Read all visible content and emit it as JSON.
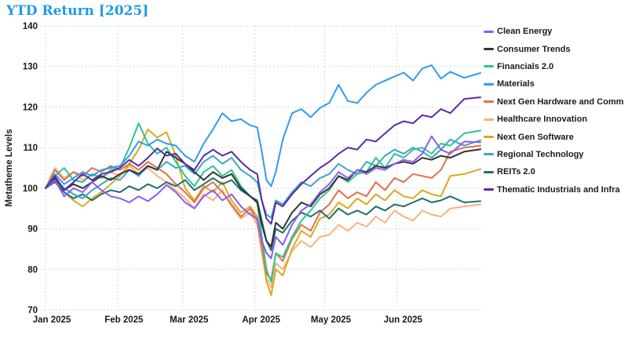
{
  "title": "YTD Return [2025]",
  "title_color": "#1e9be5",
  "chart_data": {
    "type": "line",
    "title": "YTD Return [2025]",
    "xlabel": "",
    "ylabel": "Metatheme Levels",
    "ylim": [
      70,
      140
    ],
    "y_ticks": [
      70,
      80,
      90,
      100,
      110,
      120,
      130,
      140
    ],
    "grid": "dotted",
    "legend_position": "right",
    "x_ticks": [
      {
        "label": "Jan 2025",
        "day": 1
      },
      {
        "label": "Feb 2025",
        "day": 32
      },
      {
        "label": "Mar 2025",
        "day": 60
      },
      {
        "label": "Apr 2025",
        "day": 91
      },
      {
        "label": "May 2025",
        "day": 121
      },
      {
        "label": "Jun 2025",
        "day": 152
      }
    ],
    "x_days": [
      1,
      5,
      9,
      13,
      17,
      21,
      25,
      29,
      33,
      37,
      41,
      45,
      49,
      53,
      57,
      61,
      65,
      69,
      73,
      77,
      81,
      85,
      89,
      92,
      94,
      96,
      98,
      100,
      103,
      107,
      111,
      115,
      119,
      123,
      127,
      131,
      135,
      139,
      143,
      147,
      151,
      155,
      159,
      163,
      167,
      171,
      175,
      181,
      188
    ],
    "series": [
      {
        "name": "Clean Energy",
        "color": "#8a5cf5",
        "values": [
          100,
          102,
          98,
          100,
          99,
          101.5,
          99.5,
          98,
          97.5,
          96.5,
          98,
          96.8,
          98.5,
          100.8,
          99,
          96.5,
          95,
          98,
          99.5,
          97,
          98.5,
          95.5,
          93.5,
          92.5,
          87,
          84,
          82.7,
          88,
          86,
          91,
          94.5,
          96,
          99,
          101,
          104,
          102.5,
          104.5,
          103.5,
          105,
          104.5,
          106,
          107,
          106.5,
          108.5,
          112.8,
          109.5,
          108.5,
          111.5,
          111.3
        ]
      },
      {
        "name": "Consumer Trends",
        "color": "#333333",
        "values": [
          100,
          102.5,
          99.5,
          101,
          100,
          101.5,
          103,
          102,
          103.5,
          104.5,
          103.5,
          105.5,
          104.5,
          109,
          107.5,
          106,
          104,
          102,
          104,
          102.5,
          103.5,
          100,
          98,
          96.5,
          91,
          87,
          85.6,
          91.5,
          90,
          94,
          96.5,
          95.5,
          98.5,
          100,
          103,
          102,
          104.5,
          104,
          105.5,
          105,
          106,
          106.5,
          106,
          107.5,
          107,
          108,
          107.5,
          109,
          109.6
        ]
      },
      {
        "name": "Financials 2.0",
        "color": "#2ec495",
        "values": [
          100,
          103,
          105,
          102,
          101.5,
          103.5,
          102.5,
          104.5,
          105,
          110,
          116,
          111,
          108.5,
          110,
          106.5,
          103,
          100.5,
          104,
          105.5,
          103,
          104.5,
          100.5,
          98,
          96.5,
          88,
          80,
          76.9,
          84,
          83,
          88,
          92,
          94.5,
          97.5,
          99.5,
          103,
          101.5,
          103.5,
          104,
          107.5,
          105,
          108.5,
          107.5,
          109.5,
          110,
          108.5,
          111,
          110.5,
          113.5,
          114.2
        ]
      },
      {
        "name": "Materials",
        "color": "#2f9ceb",
        "values": [
          100,
          103.5,
          101,
          102.5,
          104,
          103,
          104.5,
          105,
          105.5,
          108,
          111.5,
          110.5,
          112,
          111,
          110.5,
          108,
          106.5,
          111,
          114.5,
          118.5,
          116.5,
          117,
          115.5,
          115,
          109,
          102,
          100.5,
          104,
          112,
          118.5,
          119.5,
          117.5,
          119.8,
          121,
          125.5,
          121.5,
          121,
          123.5,
          125.5,
          126.5,
          127.5,
          128.5,
          126.5,
          129.5,
          130.3,
          127,
          128.7,
          127.2,
          128.4
        ]
      },
      {
        "name": "Next Gen Hardware and Comm",
        "color": "#e0714a",
        "values": [
          100,
          104.5,
          102,
          104,
          103,
          105,
          104,
          105.5,
          104.5,
          106,
          104.5,
          106.5,
          105,
          103.5,
          101,
          99,
          96.5,
          100,
          101.5,
          99,
          96,
          93,
          95,
          92,
          86,
          79,
          77.5,
          84,
          82,
          87.5,
          91,
          89.5,
          94,
          96,
          99.5,
          97.5,
          99,
          98,
          101.5,
          99.5,
          102.5,
          101.5,
          103.5,
          103,
          102.5,
          104.5,
          109,
          110,
          110.5
        ]
      },
      {
        "name": "Healthcare Innovation",
        "color": "#f8b27e",
        "values": [
          100,
          105,
          102.5,
          104,
          102,
          103.5,
          102.5,
          104,
          103,
          105.5,
          103.5,
          105,
          103,
          101.5,
          99.5,
          97.5,
          95,
          98.5,
          97,
          99.5,
          95.5,
          92.5,
          94,
          91,
          84,
          78,
          75.5,
          81.5,
          80,
          84.5,
          87,
          85.5,
          88,
          88.5,
          91,
          89.5,
          91.5,
          90.5,
          93,
          91.5,
          94.5,
          93,
          92,
          94.5,
          93.5,
          93,
          95,
          95.5,
          96
        ]
      },
      {
        "name": "Next Gen Software",
        "color": "#d9a91e",
        "values": [
          100,
          102,
          99,
          97,
          95.5,
          97.5,
          99,
          101,
          103,
          106,
          109.5,
          114.5,
          112.5,
          113.8,
          108,
          100,
          97,
          100.5,
          99,
          101.5,
          97,
          94,
          95.5,
          93,
          85,
          77,
          73.6,
          80,
          78.5,
          85,
          89.5,
          88,
          92.5,
          93.5,
          96.5,
          95,
          97.5,
          96,
          98.5,
          97,
          99.5,
          98,
          97.5,
          99.5,
          98.5,
          98,
          103,
          103.5,
          104.7
        ]
      },
      {
        "name": "Regional Technology",
        "color": "#3aa5c5",
        "values": [
          100,
          102.5,
          100,
          98.5,
          97.5,
          99.5,
          101,
          102.5,
          102,
          104.5,
          103,
          105.5,
          104.5,
          106.5,
          105,
          105.5,
          103.5,
          106.5,
          108,
          106,
          107.5,
          104.5,
          103,
          101.5,
          97,
          93.5,
          92.7,
          97,
          96,
          99,
          101.5,
          100.5,
          102.5,
          103.5,
          106,
          104.5,
          103.5,
          106.5,
          105.5,
          108,
          109.5,
          108.5,
          110,
          109,
          107.5,
          109.5,
          112,
          110.5,
          111.8
        ]
      },
      {
        "name": "REITs 2.0",
        "color": "#1e6f6d",
        "values": [
          100,
          101.5,
          99,
          97.5,
          98.5,
          97,
          98.5,
          99.5,
          99,
          100.5,
          99.5,
          101,
          100,
          101.5,
          100.5,
          102,
          99.5,
          101,
          102.5,
          101,
          102,
          99.5,
          98,
          97,
          92,
          87,
          84.7,
          90,
          89,
          92,
          94,
          93,
          94.5,
          92.5,
          95,
          93.5,
          94.5,
          93.5,
          95.5,
          94.5,
          96,
          95.5,
          96.5,
          97.5,
          96.5,
          97,
          98,
          96.5,
          96.8
        ]
      },
      {
        "name": "Thematic Industrials and Infra",
        "color": "#5b2aa8",
        "values": [
          100,
          103,
          99.5,
          101.5,
          103.5,
          102,
          103.5,
          104,
          105,
          107,
          105.5,
          107.5,
          109.8,
          108,
          108.5,
          106,
          104.5,
          108,
          109.5,
          108,
          109,
          106.5,
          104.5,
          103.5,
          97,
          92.5,
          91.2,
          96.5,
          95.5,
          98.5,
          101,
          103,
          105,
          106.5,
          108.5,
          110,
          109.5,
          112,
          111.5,
          113.5,
          115.5,
          116.5,
          116,
          118,
          117.5,
          119.5,
          118.5,
          122,
          122.4
        ]
      }
    ]
  }
}
